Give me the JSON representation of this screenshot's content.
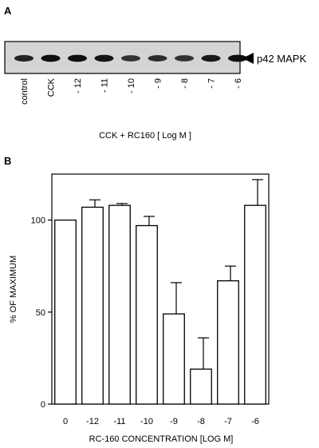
{
  "panel_a": {
    "label": "A",
    "band_label": "p42 MAPK",
    "lanes": [
      "control",
      "CCK",
      "- 12",
      "- 11",
      "- 10",
      "- 9",
      "- 8",
      "- 7",
      "- 6"
    ],
    "band_intensity": [
      0.75,
      0.95,
      0.95,
      0.9,
      0.6,
      0.65,
      0.6,
      0.85,
      0.95
    ],
    "caption": "CCK + RC160 [ Log M ]"
  },
  "panel_b": {
    "label": "B"
  },
  "chart_data": {
    "type": "bar",
    "categories": [
      "0",
      "-12",
      "-11",
      "-10",
      "-9",
      "-8",
      "-7",
      "-6"
    ],
    "values": [
      100,
      107,
      108,
      97,
      49,
      19,
      67,
      108
    ],
    "errors": [
      0,
      4,
      1,
      5,
      17,
      17,
      8,
      14
    ],
    "ylim": [
      0,
      125
    ],
    "yticks": [
      0,
      50,
      100
    ],
    "ylabel": "% OF MAXIMUM",
    "xlabel": "RC-160 CONCENTRATION  [LOG M]",
    "grid": false,
    "bar_color": "#ffffff",
    "edge_color": "#000000"
  }
}
